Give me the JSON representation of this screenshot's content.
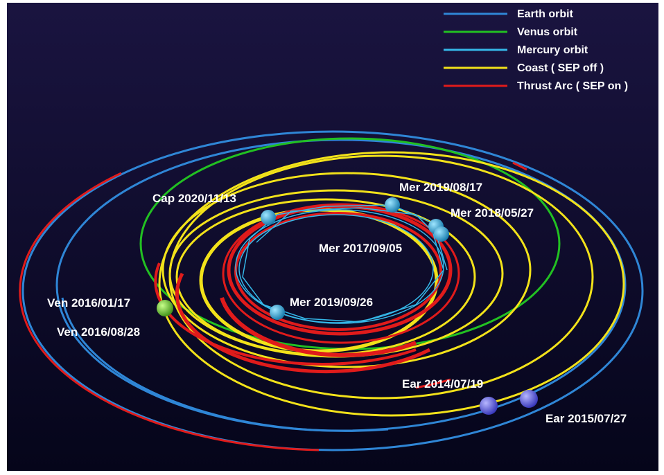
{
  "legend": [
    {
      "label": "Earth orbit",
      "color": "#2f86d6"
    },
    {
      "label": "Venus orbit",
      "color": "#22c022"
    },
    {
      "label": "Mercury orbit",
      "color": "#35b7e8"
    },
    {
      "label": "Coast ( SEP off )",
      "color": "#f2e21a"
    },
    {
      "label": "Thrust Arc ( SEP on )",
      "color": "#e01b1b"
    }
  ],
  "events": {
    "cap": "Cap 2020/11/13",
    "mer_2019_08": "Mer 2019/08/17",
    "mer_2018": "Mer 2018/05/27",
    "mer_2017": "Mer 2017/09/05",
    "mer_2019_09": "Mer 2019/09/26",
    "ven_2016_01": "Ven 2016/01/17",
    "ven_2016_08": "Ven 2016/08/28",
    "ear_2014": "Ear 2014/07/19",
    "ear_2015": "Ear 2015/07/27"
  },
  "colors": {
    "background_top": "#1a1440",
    "background_bottom": "#05051a",
    "mercury_body": "#2fa3d6",
    "venus_body": "#5fbf2a",
    "earth_body": "#5a5ae0"
  }
}
